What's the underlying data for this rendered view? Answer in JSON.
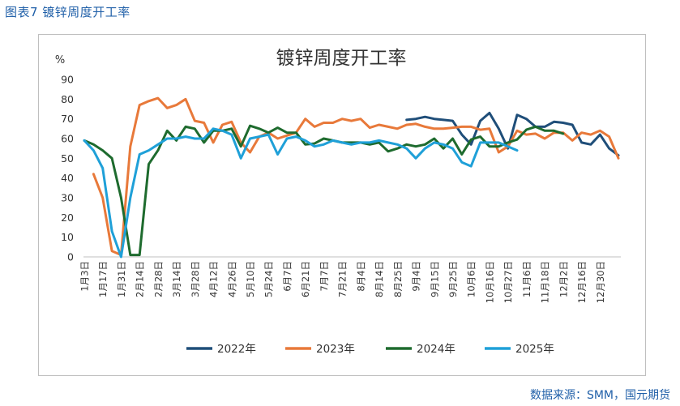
{
  "figure_caption": "图表7 镀锌周度开工率",
  "source": "数据来源：SMM，国元期货",
  "chart_data": {
    "type": "line",
    "title": "镀锌周度开工率",
    "ylabel": "%",
    "ylim": [
      0,
      90
    ],
    "yticks": [
      0,
      10,
      20,
      30,
      40,
      50,
      60,
      70,
      80,
      90
    ],
    "grid": false,
    "legend_position": "bottom",
    "x_tick_labels": [
      "1月3日",
      "1月17日",
      "1月31日",
      "2月14日",
      "2月28日",
      "3月14日",
      "3月28日",
      "4月12日",
      "4月26日",
      "5月10日",
      "5月24日",
      "6月7日",
      "6月21日",
      "7月7日",
      "7月21日",
      "8月4日",
      "8月14日",
      "8月25日",
      "9月4日",
      "9月15日",
      "9月25日",
      "10月6日",
      "10月16日",
      "10月27日",
      "11月6日",
      "11月18日",
      "12月2日",
      "12月16日",
      "12月30日"
    ],
    "series": [
      {
        "name": "2022年",
        "color": "#1f4e79",
        "points": [
          [
            35,
            69.5
          ],
          [
            36,
            70
          ],
          [
            37,
            71
          ],
          [
            38,
            70
          ],
          [
            39,
            69.5
          ],
          [
            40,
            69
          ],
          [
            41,
            62
          ],
          [
            42,
            57
          ],
          [
            43,
            69
          ],
          [
            44,
            73
          ],
          [
            45,
            65
          ],
          [
            46,
            55
          ],
          [
            47,
            72
          ],
          [
            48,
            70
          ],
          [
            49,
            66
          ],
          [
            50,
            66
          ],
          [
            51,
            68.5
          ],
          [
            52,
            68
          ],
          [
            53,
            67
          ],
          [
            54,
            58
          ],
          [
            55,
            57
          ],
          [
            56,
            62
          ],
          [
            57,
            55
          ],
          [
            58,
            51.5
          ]
        ]
      },
      {
        "name": "2023年",
        "color": "#e8793a",
        "points": [
          [
            1,
            42
          ],
          [
            2,
            30
          ],
          [
            3,
            3
          ],
          [
            4,
            1
          ],
          [
            5,
            56
          ],
          [
            6,
            77
          ],
          [
            7,
            79
          ],
          [
            8,
            80.5
          ],
          [
            9,
            75.5
          ],
          [
            10,
            77
          ],
          [
            11,
            80
          ],
          [
            12,
            69
          ],
          [
            13,
            68
          ],
          [
            14,
            58
          ],
          [
            15,
            67
          ],
          [
            16,
            68.5
          ],
          [
            17,
            58
          ],
          [
            18,
            53
          ],
          [
            19,
            61
          ],
          [
            20,
            63
          ],
          [
            21,
            60
          ],
          [
            22,
            61.5
          ],
          [
            23,
            63
          ],
          [
            24,
            70
          ],
          [
            25,
            66
          ],
          [
            26,
            68
          ],
          [
            27,
            68
          ],
          [
            28,
            70
          ],
          [
            29,
            69
          ],
          [
            30,
            70
          ],
          [
            31,
            65.5
          ],
          [
            32,
            67
          ],
          [
            33,
            66
          ],
          [
            34,
            65
          ],
          [
            35,
            67
          ],
          [
            36,
            67.5
          ],
          [
            37,
            66
          ],
          [
            38,
            65
          ],
          [
            39,
            65
          ],
          [
            40,
            65.5
          ],
          [
            41,
            66
          ],
          [
            42,
            66
          ],
          [
            43,
            64.5
          ],
          [
            44,
            65
          ],
          [
            45,
            53
          ],
          [
            46,
            56
          ],
          [
            47,
            64
          ],
          [
            48,
            62
          ],
          [
            49,
            62.5
          ],
          [
            50,
            60
          ],
          [
            51,
            63
          ],
          [
            52,
            63
          ],
          [
            53,
            59
          ],
          [
            54,
            63
          ],
          [
            55,
            62
          ],
          [
            56,
            64
          ],
          [
            57,
            61
          ],
          [
            58,
            50
          ]
        ]
      },
      {
        "name": "2024年",
        "color": "#1e6b2e",
        "points": [
          [
            0,
            59
          ],
          [
            1,
            57
          ],
          [
            2,
            54
          ],
          [
            3,
            50
          ],
          [
            4,
            30
          ],
          [
            5,
            1
          ],
          [
            6,
            1
          ],
          [
            7,
            47
          ],
          [
            8,
            54
          ],
          [
            9,
            64
          ],
          [
            10,
            59
          ],
          [
            11,
            66
          ],
          [
            12,
            65
          ],
          [
            13,
            58
          ],
          [
            14,
            64
          ],
          [
            15,
            64
          ],
          [
            16,
            65
          ],
          [
            17,
            56
          ],
          [
            18,
            66.5
          ],
          [
            19,
            65
          ],
          [
            20,
            63
          ],
          [
            21,
            65.5
          ],
          [
            22,
            63
          ],
          [
            23,
            63
          ],
          [
            24,
            57
          ],
          [
            25,
            57.5
          ],
          [
            26,
            60
          ],
          [
            27,
            59
          ],
          [
            28,
            58
          ],
          [
            29,
            58
          ],
          [
            30,
            58
          ],
          [
            31,
            57
          ],
          [
            32,
            58
          ],
          [
            33,
            53.5
          ],
          [
            34,
            55
          ],
          [
            35,
            57
          ],
          [
            36,
            56
          ],
          [
            37,
            57
          ],
          [
            38,
            60
          ],
          [
            39,
            55
          ],
          [
            40,
            60
          ],
          [
            41,
            52
          ],
          [
            42,
            59.5
          ],
          [
            43,
            61
          ],
          [
            44,
            56
          ],
          [
            45,
            56
          ],
          [
            46,
            58
          ],
          [
            47,
            59.5
          ],
          [
            48,
            64.5
          ],
          [
            49,
            66
          ],
          [
            50,
            64
          ],
          [
            51,
            64
          ],
          [
            52,
            62.5
          ]
        ]
      },
      {
        "name": "2025年",
        "color": "#1fa0d8",
        "points": [
          [
            0,
            59
          ],
          [
            1,
            54
          ],
          [
            2,
            45
          ],
          [
            3,
            13
          ],
          [
            4,
            0
          ],
          [
            5,
            30
          ],
          [
            6,
            52
          ],
          [
            7,
            54
          ],
          [
            8,
            57
          ],
          [
            9,
            60
          ],
          [
            10,
            60
          ],
          [
            11,
            61
          ],
          [
            12,
            60
          ],
          [
            13,
            60
          ],
          [
            14,
            65
          ],
          [
            15,
            64
          ],
          [
            16,
            62
          ],
          [
            17,
            50
          ],
          [
            18,
            60
          ],
          [
            19,
            61
          ],
          [
            20,
            62
          ],
          [
            21,
            52
          ],
          [
            22,
            60
          ],
          [
            23,
            61
          ],
          [
            24,
            59
          ],
          [
            25,
            56
          ],
          [
            26,
            57
          ],
          [
            27,
            59
          ],
          [
            28,
            58
          ],
          [
            29,
            57
          ],
          [
            30,
            58
          ],
          [
            31,
            58
          ],
          [
            32,
            59
          ],
          [
            33,
            58
          ],
          [
            34,
            57
          ],
          [
            35,
            55
          ],
          [
            36,
            50
          ],
          [
            37,
            55
          ],
          [
            38,
            58
          ],
          [
            39,
            57
          ],
          [
            40,
            55
          ],
          [
            41,
            48
          ],
          [
            42,
            46
          ],
          [
            43,
            58
          ],
          [
            44,
            58
          ],
          [
            45,
            58
          ],
          [
            46,
            56
          ],
          [
            47,
            54
          ]
        ]
      }
    ]
  }
}
